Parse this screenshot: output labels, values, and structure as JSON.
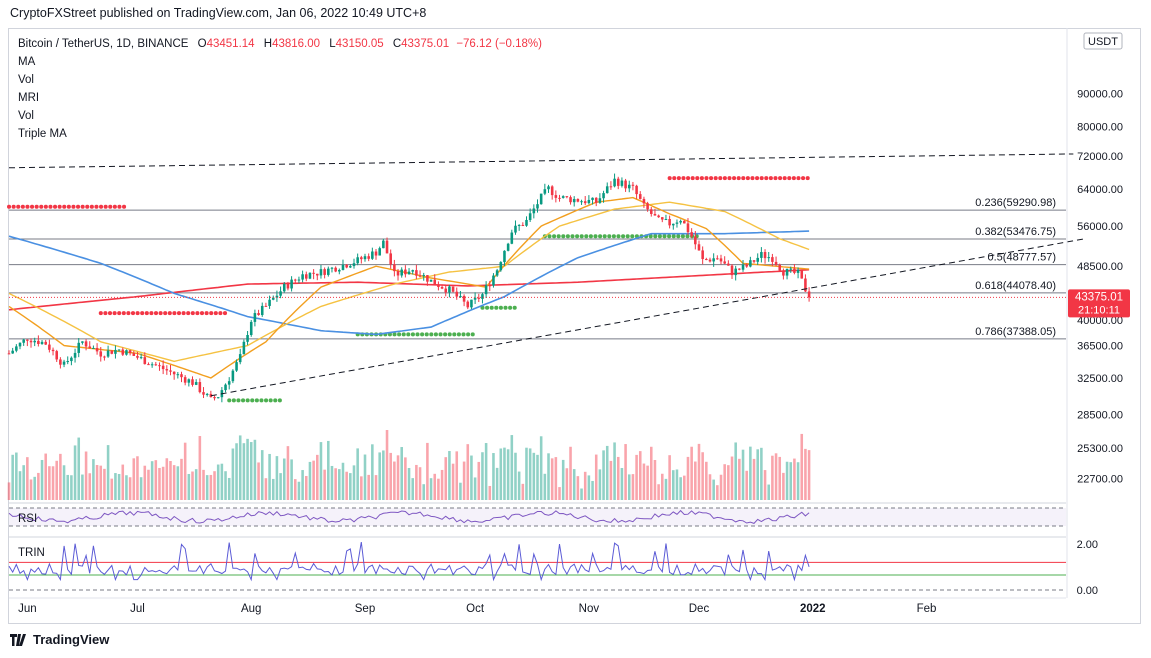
{
  "header": {
    "published_by": "CryptoFXStreet published on TradingView.com, Jan 06, 2022 10:49 UTC+8"
  },
  "legend": {
    "symbol": "Bitcoin / TetherUS, 1D, BINANCE",
    "open_label": "O",
    "open": "43451.14",
    "high_label": "H",
    "high": "43816.00",
    "low_label": "L",
    "low": "43150.05",
    "close_label": "C",
    "close": "43375.01",
    "change": "−76.12 (−0.18%)",
    "indicators": [
      "MA",
      "Vol",
      "MRI",
      "Vol",
      "Triple MA"
    ]
  },
  "currency": "USDT",
  "price_badge": {
    "price": "43375.01",
    "countdown": "21:10:11",
    "color": "#f23645"
  },
  "footer": {
    "brand": "TradingView"
  },
  "chart_data": {
    "type": "candlestick",
    "title": "Bitcoin / TetherUS, 1D, BINANCE",
    "y_scale": "log",
    "ylim": [
      21000,
      113000
    ],
    "y_ticks": [
      "90000.00",
      "80000.00",
      "72000.00",
      "64000.00",
      "56000.00",
      "48500.00",
      "40000.00",
      "36500.00",
      "32500.00",
      "28500.00",
      "25300.00",
      "22700.00"
    ],
    "y_tick_values": [
      90000,
      80000,
      72000,
      64000,
      56000,
      48500,
      40000,
      36500,
      32500,
      28500,
      25300,
      22700
    ],
    "x_ticks": [
      "Jun",
      "Jul",
      "Aug",
      "Sep",
      "Oct",
      "Nov",
      "Dec",
      "2022",
      "Feb"
    ],
    "x_tick_days": [
      0,
      30,
      61,
      92,
      122,
      153,
      183,
      214,
      245
    ],
    "x_start_day": -5,
    "x_days_span": 288,
    "price_anchors": [
      [
        -5,
        35500
      ],
      [
        0,
        37500
      ],
      [
        5,
        36800
      ],
      [
        10,
        34000
      ],
      [
        15,
        37000
      ],
      [
        20,
        35500
      ],
      [
        25,
        36000
      ],
      [
        30,
        35000
      ],
      [
        35,
        34000
      ],
      [
        40,
        33000
      ],
      [
        45,
        32000
      ],
      [
        50,
        30000
      ],
      [
        52,
        30500
      ],
      [
        55,
        32500
      ],
      [
        58,
        35000
      ],
      [
        61,
        40000
      ],
      [
        65,
        42000
      ],
      [
        70,
        45000
      ],
      [
        75,
        47000
      ],
      [
        80,
        47500
      ],
      [
        85,
        48500
      ],
      [
        90,
        49500
      ],
      [
        95,
        51000
      ],
      [
        97,
        52800
      ],
      [
        100,
        47000
      ],
      [
        105,
        48000
      ],
      [
        110,
        46000
      ],
      [
        115,
        44500
      ],
      [
        120,
        42000
      ],
      [
        124,
        43800
      ],
      [
        128,
        48000
      ],
      [
        132,
        55000
      ],
      [
        136,
        57000
      ],
      [
        140,
        62000
      ],
      [
        142,
        64000
      ],
      [
        145,
        62000
      ],
      [
        150,
        61500
      ],
      [
        155,
        61000
      ],
      [
        158,
        64000
      ],
      [
        160,
        66000
      ],
      [
        165,
        64000
      ],
      [
        168,
        60000
      ],
      [
        172,
        57000
      ],
      [
        175,
        56500
      ],
      [
        178,
        57500
      ],
      [
        181,
        54000
      ],
      [
        184,
        49500
      ],
      [
        188,
        50000
      ],
      [
        192,
        47500
      ],
      [
        196,
        48500
      ],
      [
        200,
        50500
      ],
      [
        203,
        50000
      ],
      [
        206,
        47600
      ],
      [
        210,
        47200
      ],
      [
        213,
        43375
      ]
    ],
    "sma_200_anchors": [
      [
        -5,
        41500
      ],
      [
        30,
        43500
      ],
      [
        60,
        45500
      ],
      [
        90,
        45800
      ],
      [
        120,
        45200
      ],
      [
        150,
        45800
      ],
      [
        180,
        46800
      ],
      [
        213,
        47900
      ]
    ],
    "sma_100_anchors": [
      [
        -5,
        54000
      ],
      [
        20,
        49000
      ],
      [
        40,
        44000
      ],
      [
        60,
        40500
      ],
      [
        80,
        38500
      ],
      [
        95,
        38000
      ],
      [
        110,
        39000
      ],
      [
        130,
        43500
      ],
      [
        150,
        50000
      ],
      [
        170,
        54500
      ],
      [
        190,
        54500
      ],
      [
        213,
        55000
      ]
    ],
    "sma_50_anchors": [
      [
        -5,
        44000
      ],
      [
        20,
        37000
      ],
      [
        40,
        34500
      ],
      [
        60,
        36500
      ],
      [
        80,
        42000
      ],
      [
        100,
        45500
      ],
      [
        115,
        47500
      ],
      [
        130,
        48500
      ],
      [
        145,
        56000
      ],
      [
        160,
        59500
      ],
      [
        175,
        61000
      ],
      [
        190,
        59000
      ],
      [
        205,
        53500
      ],
      [
        213,
        51500
      ]
    ],
    "sma_20_anchors": [
      [
        -5,
        42000
      ],
      [
        10,
        36500
      ],
      [
        30,
        35500
      ],
      [
        50,
        32500
      ],
      [
        65,
        37000
      ],
      [
        80,
        45000
      ],
      [
        95,
        48500
      ],
      [
        110,
        46500
      ],
      [
        125,
        45000
      ],
      [
        140,
        56000
      ],
      [
        155,
        61000
      ],
      [
        165,
        62000
      ],
      [
        175,
        58500
      ],
      [
        185,
        55500
      ],
      [
        195,
        49000
      ],
      [
        213,
        48000
      ]
    ],
    "fib_levels": [
      {
        "label": "0.236(59290.98)",
        "price": 59290.98
      },
      {
        "label": "0.382(53476.75)",
        "price": 53476.75
      },
      {
        "label": "0.5(48777.57)",
        "price": 48777.57
      },
      {
        "label": "0.618(44078.40)",
        "price": 44078.4
      },
      {
        "label": "0.786(37388.05)",
        "price": 37388.05
      }
    ],
    "trendline_upper": [
      [
        -5,
        69000
      ],
      [
        285,
        72500
      ]
    ],
    "trendline_lower": [
      [
        50,
        30500
      ],
      [
        288,
        53500
      ]
    ],
    "red_supply_zones": [
      [
        -5,
        27,
        60000
      ],
      [
        20,
        55,
        41000
      ],
      [
        175,
        213,
        66500
      ]
    ],
    "green_zones": [
      [
        55,
        70,
        30000
      ],
      [
        90,
        122,
        38000
      ],
      [
        124,
        134,
        41800
      ],
      [
        141,
        183,
        54000
      ]
    ],
    "last_price": 43375.01,
    "volume_max_label": "",
    "rsi_label": "RSI",
    "trin_label": "TRIN",
    "trin_ticks": [
      "2.00",
      "0.00"
    ],
    "trin_tick_values": [
      2,
      0
    ]
  }
}
